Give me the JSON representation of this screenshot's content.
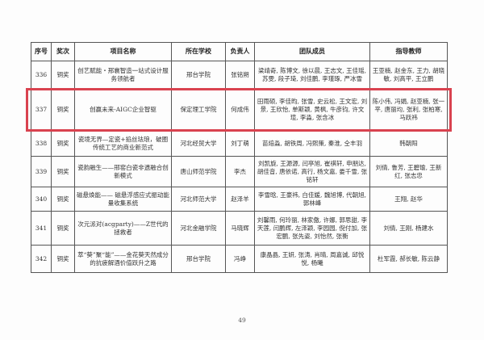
{
  "table": {
    "headers": [
      "序号",
      "奖次",
      "项目名称",
      "所在学校",
      "负责人",
      "团队成员",
      "指导教师"
    ],
    "rows": [
      {
        "no": "336",
        "award": "铜奖",
        "project": "创艺赋能・邢襄智造一站式设计服务领航者",
        "school": "邢台学院",
        "leader": "张铭朔",
        "members": "梁靖奇, 陈博文, 徐以晨, 王志文, 王佳瑶, 苏雯, 段子琦, 刘佳鹏, 李瑾琢, 严冰雪",
        "advisors": "王亚楠, 赵金东, 王力, 胡晓敏, 刘高平, 王立鹏"
      },
      {
        "no": "337",
        "award": "铜奖",
        "project": "创赢未来-AIGC企业智驱",
        "school": "保定理工学院",
        "leader": "何成伟",
        "members": "田雨硕, 李佳昀, 张雪, 史云松, 王文宏, 刘景, 王欣怡, 单斯颖, 黄枫, 牛彦钧, 许文瑄, 李淼, 张含冰",
        "advisors": "陈小伟, 冯娟, 赵亚楠, 张一平, 唐丽均, 张利, 张柏寒, 马跃祎"
      },
      {
        "no": "338",
        "award": "铜奖",
        "project": "瓷境无界—定瓷+掐丝珐琅，破圈传统工艺的商业新范式",
        "school": "河北经贸大学",
        "leader": "刘丁萌",
        "members": "苗焙淼, 胡铁周, 冯熙策, 秦淮, 仝丰羽",
        "advisors": "韩朝阳"
      },
      {
        "no": "339",
        "award": "铜奖",
        "project": "瓷韵融生——邢窑白瓷非遗融合创新模式",
        "school": "唐山师范学院",
        "leader": "李杰",
        "members": "刘凯旋, 王源源, 闫亭旭, 崔祺轩, 申朋达, 胡佳音, 唐依诺, 高行, 杨文嘉, 娄千雪, 张铭轩",
        "advisors": "刘倩, 鲁芳, 王碧瑜, 王新红, 张志忠"
      },
      {
        "no": "340",
        "award": "铜奖",
        "project": "磁悬焕能—— 磁悬浮感应式振动能量收集系统",
        "school": "河北师范大学",
        "leader": "赵泽羊",
        "members": "李雪晗, 王豪祎, 白佳媛, 魏旭博, 代朝旭, 郭林峰",
        "advisors": "王翔, 赵华"
      },
      {
        "no": "341",
        "award": "铜奖",
        "project": "次元派对(acgparty)——Z世代的拯救者",
        "school": "河北金融学院",
        "leader": "马晓辉",
        "members": "刘馨雨, 何玲丽, 林家傲, 许娜, 郭思甜, 李天莲, 闫鹏辉, 左泽颖, 李园园, 倪付加, 张宏鹏, 张先姿, 刘怡然, 张衡",
        "advisors": "刘倩, 王刚, 杨建水"
      },
      {
        "no": "342",
        "award": "铜奖",
        "project": "萃“葵”聚“能”——金花葵天然成分的抗疲解酒价值跃升之路",
        "school": "邢台学院",
        "leader": "冯峥",
        "members": "康晶晶, 王妍, 张涛, 肖晴, 周嘉诚, 邱悦悦, 杨曦",
        "advisors": "杜军霞, 郝长敏, 陈云静"
      }
    ]
  },
  "highlight_color": "#d9424f",
  "page_number": "49"
}
